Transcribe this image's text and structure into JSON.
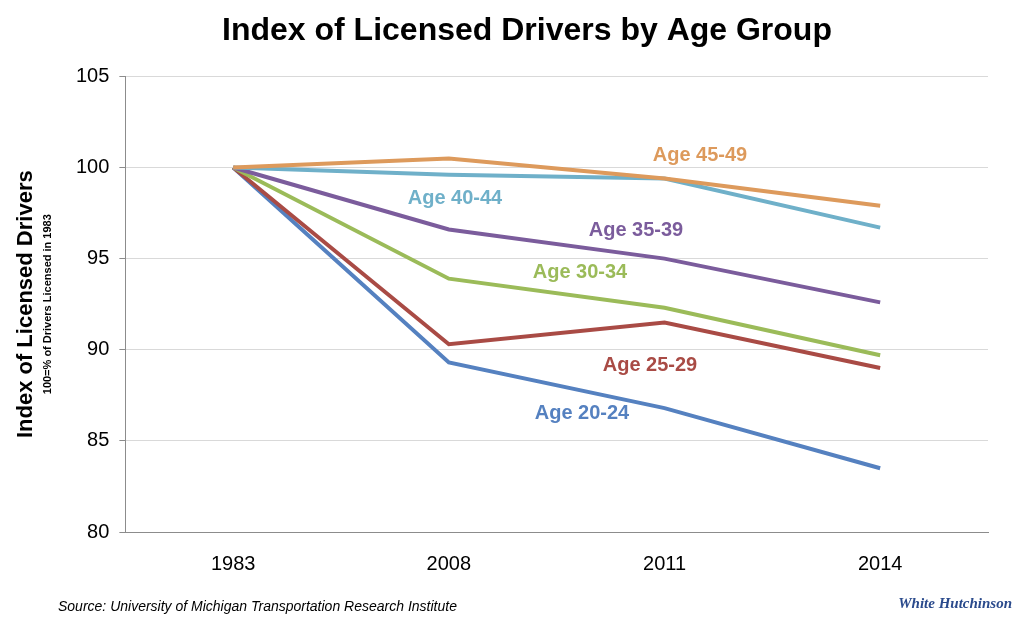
{
  "chart_data": {
    "type": "line",
    "title": "Index of Licensed Drivers by Age Group",
    "y_label": "Index of Licensed Drivers",
    "y_label_note": "100=% of Drivers Licensed in 1983",
    "source": "Source: University of Michigan Transportation Research Institute",
    "logo": "White Hutchinson",
    "categories": [
      "1983",
      "2008",
      "2011",
      "2014"
    ],
    "series": [
      {
        "name": "Age 45-49",
        "color": "#dd9a5c",
        "values": [
          100,
          100.5,
          99.4,
          97.9
        ]
      },
      {
        "name": "Age 40-44",
        "color": "#6fb0c9",
        "values": [
          100,
          99.6,
          99.4,
          96.7
        ]
      },
      {
        "name": "Age 35-39",
        "color": "#7b5c9c",
        "values": [
          100,
          96.6,
          95.0,
          92.6
        ]
      },
      {
        "name": "Age 30-34",
        "color": "#9bbb59",
        "values": [
          100,
          93.9,
          92.3,
          89.7
        ]
      },
      {
        "name": "Age 25-29",
        "color": "#a94b45",
        "values": [
          100,
          90.3,
          91.5,
          89.0
        ]
      },
      {
        "name": "Age 20-24",
        "color": "#5581c0",
        "values": [
          100,
          89.3,
          86.8,
          83.5
        ]
      }
    ],
    "ylim": [
      80,
      105
    ],
    "yticks": [
      80,
      85,
      90,
      95,
      100,
      105
    ],
    "grid": true
  }
}
